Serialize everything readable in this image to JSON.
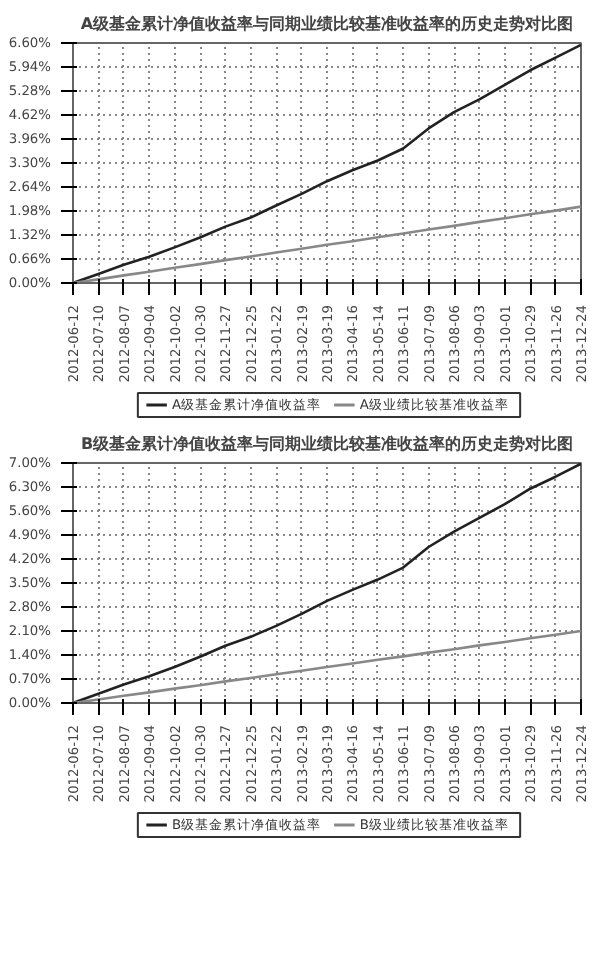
{
  "chart_data": [
    {
      "type": "line",
      "title": "A级基金累计净值收益率与同期业绩比较基准收益率的历史走势对比图",
      "categories": [
        "2012-06-12",
        "2012-07-10",
        "2012-08-07",
        "2012-09-04",
        "2012-10-02",
        "2012-10-30",
        "2012-11-27",
        "2012-12-25",
        "2013-01-22",
        "2013-02-19",
        "2013-03-19",
        "2013-04-16",
        "2013-05-14",
        "2013-06-11",
        "2013-07-09",
        "2013-08-06",
        "2013-09-03",
        "2013-10-01",
        "2013-10-29",
        "2013-11-26",
        "2013-12-24"
      ],
      "series": [
        {
          "name": "A级基金累计净值收益率",
          "color": "#222222",
          "values": [
            0,
            0.25,
            0.5,
            0.72,
            0.98,
            1.25,
            1.55,
            1.8,
            2.13,
            2.45,
            2.8,
            3.1,
            3.37,
            3.7,
            4.25,
            4.7,
            5.05,
            5.45,
            5.85,
            6.2,
            6.55
          ]
        },
        {
          "name": "A级业绩比较基准收益率",
          "color": "#888888",
          "values": [
            0,
            0.1,
            0.21,
            0.31,
            0.42,
            0.52,
            0.63,
            0.73,
            0.84,
            0.94,
            1.05,
            1.15,
            1.26,
            1.36,
            1.47,
            1.57,
            1.68,
            1.78,
            1.89,
            1.99,
            2.1
          ]
        }
      ],
      "ylim": [
        0,
        6.6
      ],
      "yticks": [
        {
          "value": 0,
          "label": "0.00%"
        },
        {
          "value": 0.66,
          "label": "0.66%"
        },
        {
          "value": 1.32,
          "label": "1.32%"
        },
        {
          "value": 1.98,
          "label": "1.98%"
        },
        {
          "value": 2.64,
          "label": "2.64%"
        },
        {
          "value": 3.3,
          "label": "3.30%"
        },
        {
          "value": 3.96,
          "label": "3.96%"
        },
        {
          "value": 4.62,
          "label": "4.62%"
        },
        {
          "value": 5.28,
          "label": "5.28%"
        },
        {
          "value": 5.94,
          "label": "5.94%"
        },
        {
          "value": 6.6,
          "label": "6.60%"
        }
      ],
      "grid": true,
      "legend": "bottom"
    },
    {
      "type": "line",
      "title": "B级基金累计净值收益率与同期业绩比较基准收益率的历史走势对比图",
      "categories": [
        "2012-06-12",
        "2012-07-10",
        "2012-08-07",
        "2012-09-04",
        "2012-10-02",
        "2012-10-30",
        "2012-11-27",
        "2012-12-25",
        "2013-01-22",
        "2013-02-19",
        "2013-03-19",
        "2013-04-16",
        "2013-05-14",
        "2013-06-11",
        "2013-07-09",
        "2013-08-06",
        "2013-09-03",
        "2013-10-01",
        "2013-10-29",
        "2013-11-26",
        "2013-12-24"
      ],
      "series": [
        {
          "name": "B级基金累计净值收益率",
          "color": "#222222",
          "values": [
            0,
            0.27,
            0.54,
            0.78,
            1.05,
            1.35,
            1.67,
            1.93,
            2.25,
            2.6,
            2.98,
            3.3,
            3.6,
            3.95,
            4.55,
            5.0,
            5.4,
            5.8,
            6.25,
            6.6,
            6.98
          ]
        },
        {
          "name": "B级业绩比较基准收益率",
          "color": "#888888",
          "values": [
            0,
            0.1,
            0.21,
            0.31,
            0.42,
            0.52,
            0.63,
            0.73,
            0.84,
            0.94,
            1.05,
            1.15,
            1.26,
            1.36,
            1.47,
            1.57,
            1.68,
            1.78,
            1.89,
            1.99,
            2.1
          ]
        }
      ],
      "ylim": [
        0,
        7.0
      ],
      "yticks": [
        {
          "value": 0,
          "label": "0.00%"
        },
        {
          "value": 0.7,
          "label": "0.70%"
        },
        {
          "value": 1.4,
          "label": "1.40%"
        },
        {
          "value": 2.1,
          "label": "2.10%"
        },
        {
          "value": 2.8,
          "label": "2.80%"
        },
        {
          "value": 3.5,
          "label": "3.50%"
        },
        {
          "value": 4.2,
          "label": "4.20%"
        },
        {
          "value": 4.9,
          "label": "4.90%"
        },
        {
          "value": 5.6,
          "label": "5.60%"
        },
        {
          "value": 6.3,
          "label": "6.30%"
        },
        {
          "value": 7.0,
          "label": "7.00%"
        }
      ],
      "grid": true,
      "legend": "bottom"
    }
  ]
}
